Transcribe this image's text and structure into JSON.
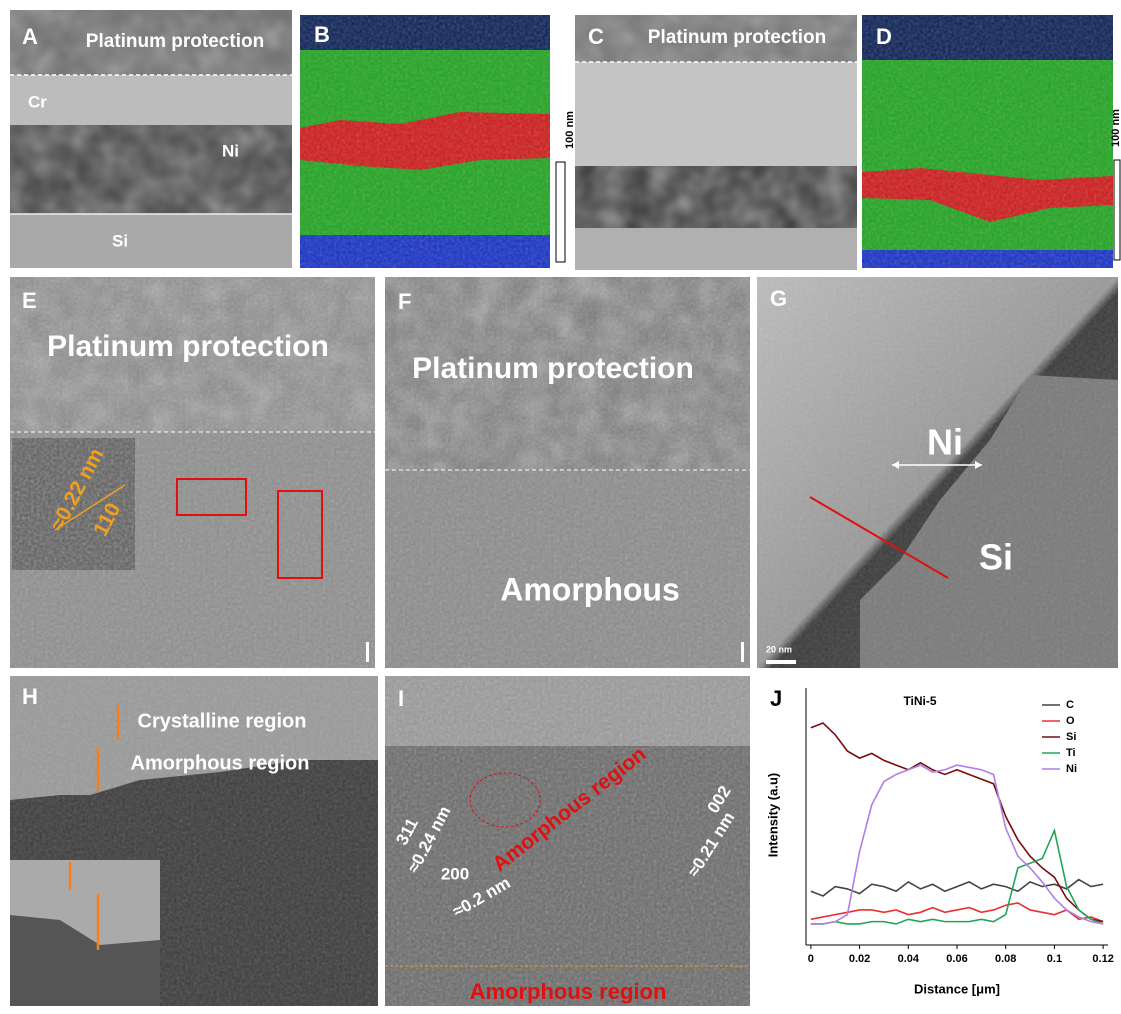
{
  "panels": {
    "A": {
      "label": "A",
      "layer_top": "Platinum protection",
      "layer_cr": "Cr",
      "layer_ni": "Ni",
      "layer_si": "Si"
    },
    "B": {
      "label": "B",
      "scale": "100 nm"
    },
    "C": {
      "label": "C",
      "layer_top": "Platinum protection"
    },
    "D": {
      "label": "D",
      "scale": "100 nm"
    },
    "E": {
      "label": "E",
      "layer_top": "Platinum protection",
      "spacing": "≈0.22 nm",
      "plane": "110"
    },
    "F": {
      "label": "F",
      "layer_top": "Platinum protection",
      "bottom": "Amorphous"
    },
    "G": {
      "label": "G",
      "layer_ni": "Ni",
      "layer_si": "Si",
      "scale": "20 nm"
    },
    "H": {
      "label": "H",
      "crystalline": "Crystalline region",
      "amorphous": "Amorphous region"
    },
    "I": {
      "label": "I",
      "plane_311": "311",
      "spacing_311": "≈0.24 nm",
      "plane_200": "200",
      "spacing_200": "≈0.2 nm",
      "amorphous_mid": "Amorphous region",
      "plane_002": "002",
      "spacing_002": "≈0.21 nm",
      "amorphous_bottom": "Amorphous region"
    }
  },
  "chart_data": {
    "type": "line",
    "label": "J",
    "title": "TiNi-5",
    "x_label": "Distance [μm]",
    "y_label": "Intensity (a.u)",
    "x": [
      0,
      0.005,
      0.01,
      0.015,
      0.02,
      0.025,
      0.03,
      0.035,
      0.04,
      0.045,
      0.05,
      0.055,
      0.06,
      0.065,
      0.07,
      0.075,
      0.08,
      0.085,
      0.09,
      0.095,
      0.1,
      0.105,
      0.11,
      0.115,
      0.12
    ],
    "xlim": [
      -0.002,
      0.122
    ],
    "xticks": [
      0,
      0.02,
      0.04,
      0.06,
      0.08,
      0.1,
      0.12
    ],
    "ylim": [
      -5,
      105
    ],
    "legend": "top-right",
    "series": [
      {
        "name": "C",
        "color": "#444444",
        "values": [
          18,
          16,
          20,
          19,
          17,
          21,
          20,
          18,
          22,
          19,
          21,
          18,
          20,
          22,
          19,
          21,
          20,
          18,
          22,
          20,
          21,
          19,
          23,
          20,
          21
        ]
      },
      {
        "name": "O",
        "color": "#e83030",
        "values": [
          6,
          7,
          8,
          9,
          10,
          10,
          9,
          10,
          8,
          9,
          11,
          9,
          10,
          11,
          9,
          10,
          12,
          13,
          10,
          9,
          8,
          10,
          6,
          7,
          5
        ]
      },
      {
        "name": "Si",
        "color": "#7a0c0c",
        "values": [
          88,
          90,
          85,
          78,
          75,
          77,
          74,
          72,
          70,
          73,
          70,
          68,
          70,
          68,
          66,
          64,
          50,
          40,
          33,
          28,
          24,
          15,
          10,
          6,
          5
        ]
      },
      {
        "name": "Ti",
        "color": "#22a55a",
        "values": [
          4,
          4,
          5,
          4,
          4,
          5,
          5,
          4,
          6,
          5,
          6,
          5,
          5,
          5,
          6,
          5,
          8,
          28,
          30,
          32,
          44,
          20,
          10,
          6,
          4
        ]
      },
      {
        "name": "Ni",
        "color": "#b07ee8",
        "values": [
          4,
          4,
          5,
          8,
          35,
          55,
          65,
          68,
          70,
          72,
          69,
          70,
          72,
          71,
          70,
          68,
          45,
          33,
          28,
          22,
          15,
          10,
          7,
          5,
          4
        ]
      }
    ]
  }
}
